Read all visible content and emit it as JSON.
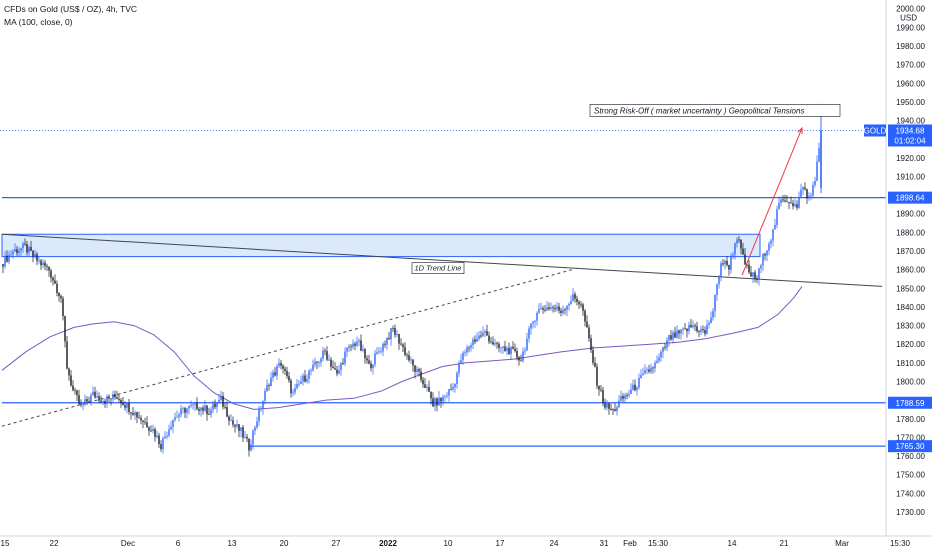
{
  "header": {
    "title": "CFDs on Gold (US$ / OZ), 4h, TVC",
    "indicator": "MA (100, close, 0)"
  },
  "colors": {
    "up": "#2962ff",
    "down": "#131722",
    "ma": "#7e57c2",
    "level": "#2962ff",
    "zone_fill": "#dbe9fd",
    "trendline": "#434651",
    "channel": "#434651",
    "arrow": "#f23645",
    "price_line": "#2962ff"
  },
  "chart_data": {
    "type": "candlestick",
    "symbol": "GOLD",
    "currency": "USD",
    "ylim": [
      1723,
      2002
    ],
    "y_ticks": [
      1730,
      1740,
      1750,
      1760,
      1770,
      1780,
      1790,
      1800,
      1810,
      1820,
      1830,
      1840,
      1850,
      1860,
      1870,
      1880,
      1890,
      1900,
      1910,
      1920,
      1930,
      1940,
      1950,
      1960,
      1970,
      1980,
      1990,
      2000
    ],
    "y_tick_labels": [
      "1730.00",
      "1740.00",
      "1750.00",
      "1760.00",
      "1770.00",
      "1780.00",
      "1790.00",
      "1800.00",
      "1810.00",
      "1820.00",
      "1830.00",
      "1840.00",
      "1850.00",
      "1860.00",
      "1870.00",
      "1880.00",
      "1890.00",
      "1900.00",
      "1910.00",
      "1920.00",
      "1930.00",
      "1940.00",
      "1950.00",
      "1960.00",
      "1970.00",
      "1980.00",
      "1990.00",
      "2000.00"
    ],
    "y_unit_label": "USD",
    "x_ticks": [
      {
        "label": "15",
        "bar": 0
      },
      {
        "label": "22",
        "bar": 26
      },
      {
        "label": "Dec",
        "bar": 63
      },
      {
        "label": "6",
        "bar": 88
      },
      {
        "label": "13",
        "bar": 115
      },
      {
        "label": "20",
        "bar": 141
      },
      {
        "label": "27",
        "bar": 167
      },
      {
        "label": "2022",
        "bar": 193
      },
      {
        "label": "10",
        "bar": 223
      },
      {
        "label": "17",
        "bar": 249
      },
      {
        "label": "24",
        "bar": 276
      },
      {
        "label": "31",
        "bar": 301
      },
      {
        "label": "Feb",
        "bar": 314
      },
      {
        "label": "15:30",
        "bar": 328
      },
      {
        "label": "14",
        "bar": 365
      },
      {
        "label": "21",
        "bar": 391
      },
      {
        "label": "Mar",
        "bar": 420
      },
      {
        "label": "15:30",
        "bar": 449
      }
    ],
    "bar_count": 410,
    "price_path": [
      [
        0,
        1863
      ],
      [
        6,
        1870
      ],
      [
        12,
        1872
      ],
      [
        18,
        1865
      ],
      [
        24,
        1860
      ],
      [
        30,
        1845
      ],
      [
        33,
        1808
      ],
      [
        36,
        1795
      ],
      [
        40,
        1786
      ],
      [
        46,
        1793
      ],
      [
        52,
        1790
      ],
      [
        58,
        1792
      ],
      [
        64,
        1786
      ],
      [
        70,
        1780
      ],
      [
        76,
        1774
      ],
      [
        80,
        1766
      ],
      [
        86,
        1780
      ],
      [
        92,
        1785
      ],
      [
        98,
        1787
      ],
      [
        104,
        1784
      ],
      [
        110,
        1790
      ],
      [
        116,
        1777
      ],
      [
        120,
        1773
      ],
      [
        124,
        1765
      ],
      [
        128,
        1780
      ],
      [
        134,
        1800
      ],
      [
        140,
        1810
      ],
      [
        146,
        1793
      ],
      [
        150,
        1800
      ],
      [
        156,
        1807
      ],
      [
        162,
        1816
      ],
      [
        168,
        1803
      ],
      [
        172,
        1815
      ],
      [
        178,
        1822
      ],
      [
        184,
        1808
      ],
      [
        190,
        1818
      ],
      [
        196,
        1828
      ],
      [
        200,
        1820
      ],
      [
        206,
        1808
      ],
      [
        212,
        1798
      ],
      [
        216,
        1788
      ],
      [
        220,
        1790
      ],
      [
        226,
        1797
      ],
      [
        230,
        1812
      ],
      [
        236,
        1822
      ],
      [
        242,
        1826
      ],
      [
        248,
        1818
      ],
      [
        254,
        1817
      ],
      [
        260,
        1812
      ],
      [
        264,
        1826
      ],
      [
        268,
        1838
      ],
      [
        274,
        1840
      ],
      [
        280,
        1838
      ],
      [
        286,
        1845
      ],
      [
        290,
        1842
      ],
      [
        294,
        1822
      ],
      [
        298,
        1800
      ],
      [
        302,
        1787
      ],
      [
        306,
        1784
      ],
      [
        310,
        1790
      ],
      [
        316,
        1796
      ],
      [
        322,
        1804
      ],
      [
        328,
        1810
      ],
      [
        334,
        1823
      ],
      [
        340,
        1826
      ],
      [
        346,
        1830
      ],
      [
        352,
        1826
      ],
      [
        356,
        1838
      ],
      [
        360,
        1864
      ],
      [
        364,
        1862
      ],
      [
        368,
        1878
      ],
      [
        371,
        1866
      ],
      [
        374,
        1858
      ],
      [
        378,
        1855
      ],
      [
        382,
        1870
      ],
      [
        386,
        1880
      ],
      [
        389,
        1895
      ],
      [
        392,
        1898
      ],
      [
        395,
        1897
      ],
      [
        398,
        1893
      ],
      [
        401,
        1906
      ],
      [
        403,
        1898
      ],
      [
        405,
        1900
      ],
      [
        407,
        1910
      ],
      [
        410,
        1930
      ]
    ],
    "last_candle": {
      "open": 1904,
      "high": 1949,
      "low": 1901,
      "close": 1934.68
    },
    "ma_points": [
      [
        0,
        1806
      ],
      [
        12,
        1816
      ],
      [
        24,
        1824
      ],
      [
        36,
        1829
      ],
      [
        46,
        1831
      ],
      [
        56,
        1832
      ],
      [
        66,
        1830
      ],
      [
        76,
        1825
      ],
      [
        86,
        1816
      ],
      [
        96,
        1803
      ],
      [
        106,
        1794
      ],
      [
        116,
        1788
      ],
      [
        126,
        1785
      ],
      [
        138,
        1786
      ],
      [
        150,
        1788
      ],
      [
        162,
        1790
      ],
      [
        176,
        1791
      ],
      [
        190,
        1795
      ],
      [
        200,
        1800
      ],
      [
        210,
        1804
      ],
      [
        220,
        1808
      ],
      [
        232,
        1810
      ],
      [
        244,
        1811
      ],
      [
        256,
        1812
      ],
      [
        268,
        1814
      ],
      [
        280,
        1816
      ],
      [
        296,
        1818
      ],
      [
        310,
        1819
      ],
      [
        324,
        1820
      ],
      [
        338,
        1821
      ],
      [
        352,
        1823
      ],
      [
        366,
        1826
      ],
      [
        378,
        1829
      ],
      [
        388,
        1836
      ],
      [
        396,
        1845
      ],
      [
        400,
        1851
      ]
    ],
    "levels": [
      {
        "price": 1898.64,
        "label": "1898.64",
        "from_bar": 0
      },
      {
        "price": 1788.59,
        "label": "1788.59",
        "from_bar": 0
      },
      {
        "price": 1765.3,
        "label": "1765.30",
        "from_bar": 124
      }
    ],
    "zone": {
      "from_bar": 0,
      "to_bar": 379,
      "top": 1879,
      "bottom": 1867
    },
    "trendline": {
      "from": [
        0,
        1879
      ],
      "to": [
        440,
        1851
      ],
      "label": "1D Trend Line",
      "label_bar": 206
    },
    "channel_line": {
      "from": [
        0,
        1776
      ],
      "to": [
        285,
        1860
      ]
    },
    "arrow": {
      "from": [
        370,
        1857
      ],
      "to": [
        400,
        1936
      ]
    },
    "last_price": {
      "price": 1934.68,
      "label": "1934.68",
      "name": "GOLD",
      "countdown": "01:02:04"
    },
    "annotation": {
      "text": "Strong Risk-Off ( market uncertainty )  Geopolitical Tensions",
      "bar": 340,
      "price": 1946
    }
  }
}
